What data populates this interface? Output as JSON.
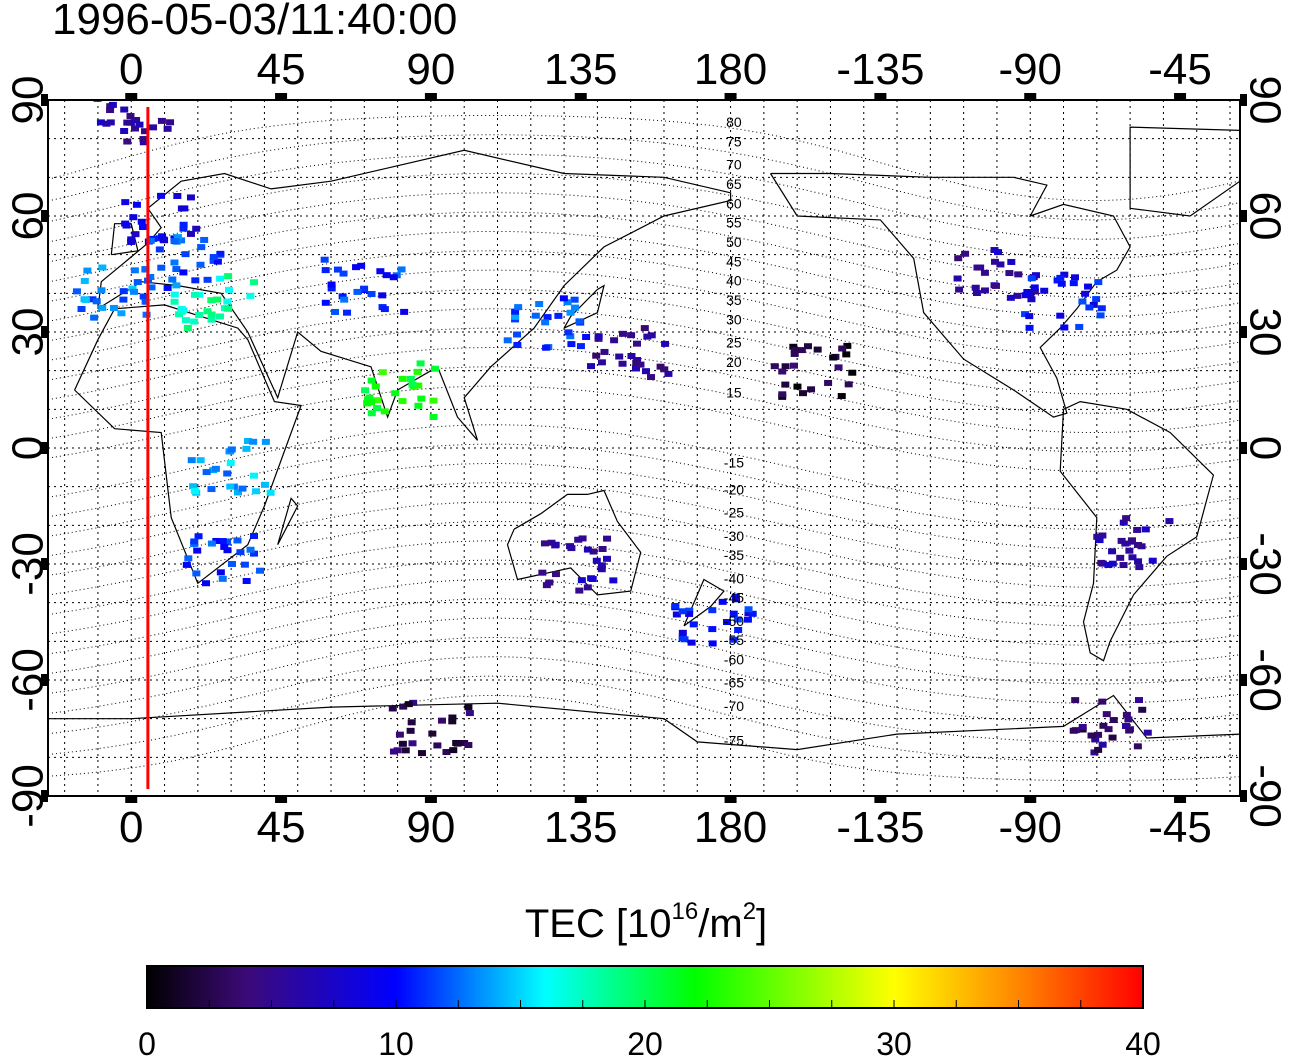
{
  "title": "1996-05-03/11:40:00",
  "map": {
    "x_tick_labels": [
      "0",
      "45",
      "90",
      "135",
      "180",
      "-135",
      "-90",
      "-45"
    ],
    "x_tick_lon": [
      0,
      45,
      90,
      135,
      180,
      225,
      270,
      315
    ],
    "y_tick_labels": [
      "90",
      "60",
      "30",
      "0",
      "-30",
      "-60",
      "-90"
    ],
    "y_tick_lat": [
      90,
      60,
      30,
      0,
      -30,
      -60,
      -90
    ],
    "lon_range": [
      -25,
      333
    ],
    "lat_range": [
      -90,
      90
    ],
    "grid": "dotted, every 10 degrees",
    "terminator_longitude": 5,
    "terminator_color": "#ff0000",
    "contour_labels": [
      {
        "text": "80",
        "lon": 181,
        "lat": 83
      },
      {
        "text": "75",
        "lon": 181,
        "lat": 78
      },
      {
        "text": "70",
        "lon": 181,
        "lat": 72
      },
      {
        "text": "65",
        "lon": 181,
        "lat": 67
      },
      {
        "text": "60",
        "lon": 181,
        "lat": 62
      },
      {
        "text": "55",
        "lon": 181,
        "lat": 57
      },
      {
        "text": "50",
        "lon": 181,
        "lat": 52
      },
      {
        "text": "45",
        "lon": 181,
        "lat": 47
      },
      {
        "text": "40",
        "lon": 181,
        "lat": 42
      },
      {
        "text": "35",
        "lon": 181,
        "lat": 37
      },
      {
        "text": "30",
        "lon": 181,
        "lat": 32
      },
      {
        "text": "25",
        "lon": 181,
        "lat": 26
      },
      {
        "text": "20",
        "lon": 181,
        "lat": 21
      },
      {
        "text": "15",
        "lon": 181,
        "lat": 13
      },
      {
        "text": "-15",
        "lon": 181,
        "lat": -5
      },
      {
        "text": "-20",
        "lon": 181,
        "lat": -12
      },
      {
        "text": "-25",
        "lon": 181,
        "lat": -18
      },
      {
        "text": "-30",
        "lon": 181,
        "lat": -24
      },
      {
        "text": "-35",
        "lon": 181,
        "lat": -29
      },
      {
        "text": "-40",
        "lon": 181,
        "lat": -35
      },
      {
        "text": "-45",
        "lon": 181,
        "lat": -40
      },
      {
        "text": "-50",
        "lon": 181,
        "lat": -46
      },
      {
        "text": "-55",
        "lon": 181,
        "lat": -51
      },
      {
        "text": "-60",
        "lon": 181,
        "lat": -56
      },
      {
        "text": "-65",
        "lon": 181,
        "lat": -62
      },
      {
        "text": "-70",
        "lon": 181,
        "lat": -68
      },
      {
        "text": "-75",
        "lon": 181,
        "lat": -77
      }
    ],
    "tec_clusters": [
      {
        "lon": 0,
        "lat": 85,
        "tec": 6,
        "region": "arctic-europe"
      },
      {
        "lon": 10,
        "lat": 60,
        "tec": 9,
        "region": "scandinavia"
      },
      {
        "lon": 15,
        "lat": 48,
        "tec": 12,
        "region": "central-europe"
      },
      {
        "lon": -5,
        "lat": 40,
        "tec": 13,
        "region": "iberia"
      },
      {
        "lon": 25,
        "lat": 38,
        "tec": 18,
        "region": "mediterranean"
      },
      {
        "lon": 70,
        "lat": 42,
        "tec": 11,
        "region": "central-asia"
      },
      {
        "lon": 80,
        "lat": 15,
        "tec": 22,
        "region": "india"
      },
      {
        "lon": 125,
        "lat": 32,
        "tec": 12,
        "region": "east-asia"
      },
      {
        "lon": 150,
        "lat": 25,
        "tec": 5,
        "region": "west-pacific"
      },
      {
        "lon": 260,
        "lat": 45,
        "tec": 6,
        "region": "north-america"
      },
      {
        "lon": 280,
        "lat": 38,
        "tec": 10,
        "region": "eastern-usa"
      },
      {
        "lon": 205,
        "lat": 20,
        "tec": 2,
        "region": "hawaii"
      },
      {
        "lon": 135,
        "lat": -30,
        "tec": 6,
        "region": "australia"
      },
      {
        "lon": 175,
        "lat": -45,
        "tec": 10,
        "region": "new-zealand"
      },
      {
        "lon": 90,
        "lat": -72,
        "tec": 3,
        "region": "antarctica"
      },
      {
        "lon": 295,
        "lat": -72,
        "tec": 4,
        "region": "antarctic-peninsula"
      },
      {
        "lon": 300,
        "lat": -25,
        "tec": 6,
        "region": "south-america"
      },
      {
        "lon": 30,
        "lat": -5,
        "tec": 14,
        "region": "east-africa"
      },
      {
        "lon": 28,
        "lat": -28,
        "tec": 11,
        "region": "south-africa"
      }
    ]
  },
  "colorbar": {
    "label_main": "TEC  [10",
    "label_exp1": "16",
    "label_mid": "/m",
    "label_exp2": "2",
    "label_end": "]",
    "min": 0,
    "max": 40,
    "tick_labels": [
      "0",
      "10",
      "20",
      "30",
      "40"
    ],
    "colormap": [
      "#000000",
      "#3c0a78",
      "#0000ff",
      "#00ffff",
      "#00ff00",
      "#ffff00",
      "#ff8000",
      "#ff0000"
    ]
  }
}
